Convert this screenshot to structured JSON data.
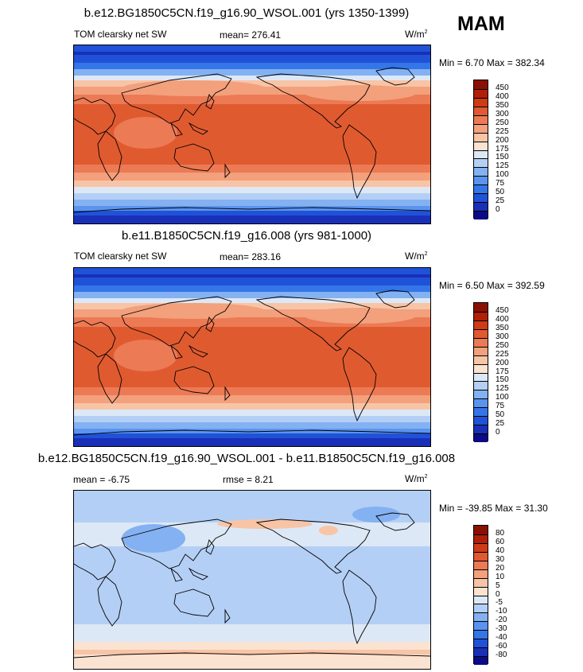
{
  "season": "MAM",
  "panels": [
    {
      "title": "b.e12.BG1850C5CN.f19_g16.90_WSOL.001 (yrs 1350-1399)",
      "left_label": "TOM clearsky net SW",
      "mid_label": "mean= 276.41",
      "units_base": "W/m",
      "units_exp": "2",
      "minmax": "Min =   6.70 Max = 382.34"
    },
    {
      "title": "b.e11.B1850C5CN.f19_g16.008 (yrs 981-1000)",
      "left_label": "TOM clearsky net SW",
      "mid_label": "mean= 283.16",
      "units_base": "W/m",
      "units_exp": "2",
      "minmax": "Min =   6.50 Max = 392.59"
    },
    {
      "title": "b.e12.BG1850C5CN.f19_g16.90_WSOL.001 - b.e11.B1850C5CN.f19_g16.008",
      "left_label": "mean =   -6.75",
      "mid_label": "rmse =   8.21",
      "units_base": "W/m",
      "units_exp": "2",
      "minmax": "Min = -39.85 Max =  31.30"
    }
  ],
  "chart_data": [
    {
      "type": "heatmap",
      "title": "b.e12.BG1850C5CN.f19_g16.90_WSOL.001 (yrs 1350-1399)",
      "variable": "TOM clearsky net SW",
      "units": "W/m2",
      "mean": 276.41,
      "min": 6.7,
      "max": 382.34,
      "colorbar_levels": [
        0,
        25,
        50,
        75,
        100,
        125,
        150,
        175,
        200,
        225,
        250,
        300,
        350,
        400,
        450
      ],
      "colorbar_colors": [
        "#0b0b87",
        "#1a2fb8",
        "#2052d8",
        "#3476e8",
        "#5a94ef",
        "#84b1f2",
        "#b4cff5",
        "#dde8f6",
        "#fbe3d2",
        "#f8c4a6",
        "#f3a07c",
        "#ec7a55",
        "#e05a30",
        "#cf3b15",
        "#b02008",
        "#8a1004"
      ]
    },
    {
      "type": "heatmap",
      "title": "b.e11.B1850C5CN.f19_g16.008 (yrs 981-1000)",
      "variable": "TOM clearsky net SW",
      "units": "W/m2",
      "mean": 283.16,
      "min": 6.5,
      "max": 392.59,
      "colorbar_levels": [
        0,
        25,
        50,
        75,
        100,
        125,
        150,
        175,
        200,
        225,
        250,
        300,
        350,
        400,
        450
      ],
      "colorbar_colors": [
        "#0b0b87",
        "#1a2fb8",
        "#2052d8",
        "#3476e8",
        "#5a94ef",
        "#84b1f2",
        "#b4cff5",
        "#dde8f6",
        "#fbe3d2",
        "#f8c4a6",
        "#f3a07c",
        "#ec7a55",
        "#e05a30",
        "#cf3b15",
        "#b02008",
        "#8a1004"
      ]
    },
    {
      "type": "heatmap",
      "title": "b.e12.BG1850C5CN.f19_g16.90_WSOL.001 - b.e11.B1850C5CN.f19_g16.008",
      "units": "W/m2",
      "mean": -6.75,
      "rmse": 8.21,
      "min": -39.85,
      "max": 31.3,
      "colorbar_levels": [
        -80,
        -60,
        -40,
        -30,
        -20,
        -10,
        -5,
        0,
        5,
        10,
        20,
        30,
        40,
        60,
        80
      ],
      "colorbar_colors": [
        "#0b0b87",
        "#1a2fb8",
        "#2052d8",
        "#3476e8",
        "#5a94ef",
        "#84b1f2",
        "#b4cff5",
        "#dde8f6",
        "#fbe3d2",
        "#f8c4a6",
        "#f3a07c",
        "#ec7a55",
        "#e05a30",
        "#cf3b15",
        "#b02008",
        "#8a1004"
      ]
    }
  ]
}
